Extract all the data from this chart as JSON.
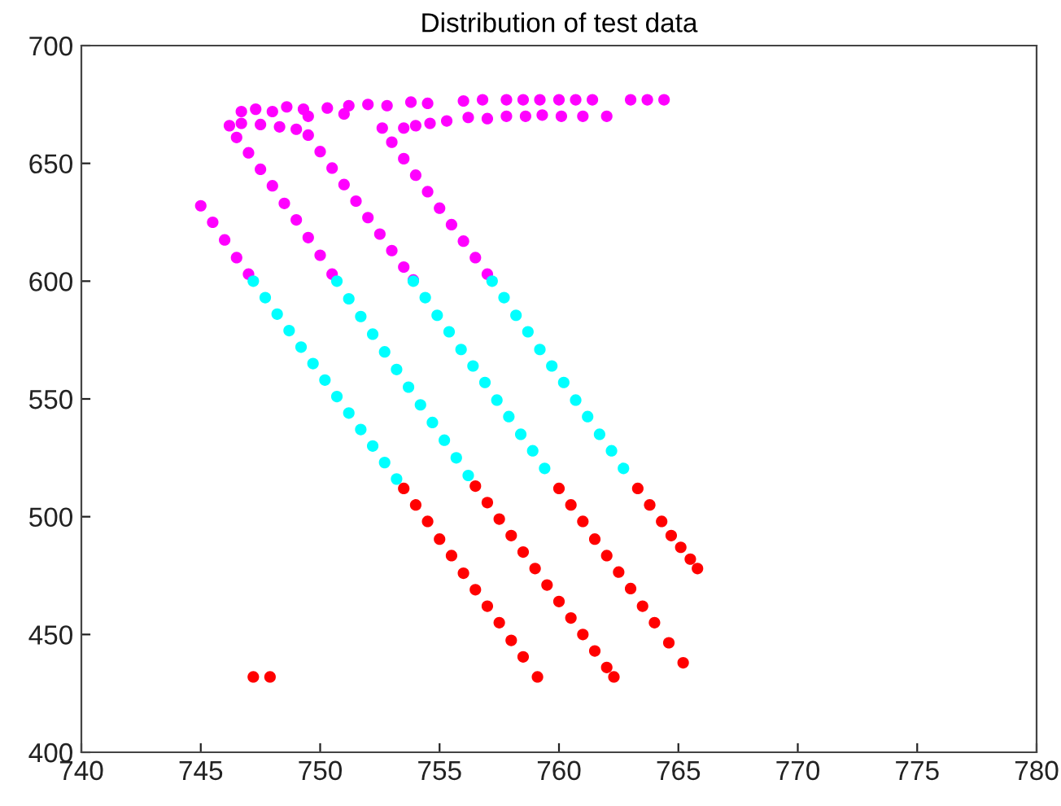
{
  "chart_data": {
    "type": "scatter",
    "title": "Distribution of test data",
    "xlim": [
      740,
      780
    ],
    "xticks": [
      740,
      745,
      750,
      755,
      760,
      765,
      770,
      775,
      780
    ],
    "ylim": [
      400,
      700
    ],
    "yticks": [
      400,
      450,
      500,
      550,
      600,
      650,
      700
    ],
    "grid": false,
    "legend": false,
    "marker": "circle",
    "series": [
      {
        "color": "#ff00ff",
        "x": [
          745.0,
          745.5,
          746.0,
          746.5,
          747.0,
          746.2,
          746.5,
          747.0,
          747.5,
          748.0,
          748.5,
          749.0,
          749.5,
          750.0,
          750.5,
          746.7,
          747.5,
          748.3,
          749.0,
          749.5,
          750.0,
          750.5,
          751.0,
          751.5,
          752.0,
          752.5,
          753.0,
          753.5,
          753.9,
          752.6,
          753.0,
          753.5,
          754.0,
          754.5,
          755.0,
          755.5,
          756.0,
          756.5,
          757.0,
          746.7,
          747.3,
          748.0,
          748.6,
          749.3,
          750.3,
          751.2,
          752.0,
          752.8,
          753.8,
          754.5,
          756.0,
          756.8,
          757.8,
          758.5,
          759.2,
          760.0,
          760.7,
          761.4,
          763.0,
          763.7,
          764.4,
          753.5,
          754.0,
          754.6,
          755.3,
          756.2,
          757.0,
          757.8,
          758.6,
          759.3,
          760.1,
          761.0,
          762.0,
          749.5,
          751.0
        ],
        "values": [
          632,
          625,
          617.5,
          610,
          603,
          666,
          661,
          654.5,
          647.5,
          640.5,
          633,
          626,
          618.5,
          611,
          603,
          667,
          666.5,
          665.5,
          664.5,
          662,
          655,
          648,
          641,
          634,
          627,
          620,
          613,
          606,
          600.5,
          665,
          659,
          652,
          645,
          638,
          631,
          624,
          617,
          610,
          603,
          672,
          673,
          672,
          674,
          673,
          673.5,
          674.5,
          675,
          674.5,
          676,
          675.5,
          676.5,
          677,
          677,
          677,
          677,
          677,
          677,
          677,
          677,
          677,
          677,
          665,
          666,
          667,
          668,
          669.5,
          669,
          670,
          670,
          670.5,
          670,
          670,
          670,
          670,
          671
        ]
      },
      {
        "color": "#00ffff",
        "x": [
          747.2,
          747.7,
          748.2,
          748.7,
          749.2,
          749.7,
          750.2,
          750.7,
          751.2,
          751.7,
          752.2,
          752.7,
          753.2,
          750.7,
          751.2,
          751.7,
          752.2,
          752.7,
          753.2,
          753.7,
          754.2,
          754.7,
          755.2,
          755.7,
          756.2,
          753.9,
          754.4,
          754.9,
          755.4,
          755.9,
          756.4,
          756.9,
          757.4,
          757.9,
          758.4,
          758.9,
          759.4,
          757.2,
          757.7,
          758.2,
          758.7,
          759.2,
          759.7,
          760.2,
          760.7,
          761.2,
          761.7,
          762.2,
          762.7
        ],
        "values": [
          600,
          593,
          586,
          579,
          572,
          565,
          558,
          551,
          544,
          537,
          530,
          523,
          516,
          600,
          592.5,
          585,
          577.5,
          570,
          562.5,
          555,
          547.5,
          540,
          532.5,
          525,
          517.5,
          600,
          593,
          585.5,
          578.5,
          571,
          564,
          557,
          549.5,
          542.5,
          535,
          528,
          520.5,
          600,
          593,
          585.5,
          578.5,
          571,
          564,
          557,
          549.5,
          542.5,
          535,
          528,
          520.5
        ]
      },
      {
        "color": "#ff0000",
        "x": [
          753.5,
          754.0,
          754.5,
          755.0,
          755.5,
          756.0,
          756.5,
          757.0,
          757.5,
          758.0,
          758.5,
          759.1,
          756.5,
          757.0,
          757.5,
          758.0,
          758.5,
          759.0,
          759.5,
          760.0,
          760.5,
          761.0,
          761.5,
          762.0,
          762.3,
          760.0,
          760.5,
          761.0,
          761.5,
          762.0,
          762.5,
          763.0,
          763.5,
          764.0,
          764.6,
          765.2,
          763.3,
          763.8,
          764.3,
          764.7,
          765.1,
          765.5,
          765.8,
          747.2,
          747.9
        ],
        "values": [
          512,
          505,
          498,
          490.5,
          483.5,
          476,
          469,
          462,
          455,
          447.5,
          440.5,
          432,
          513,
          506,
          499,
          492,
          485,
          478,
          471,
          464,
          457,
          450,
          443,
          436,
          432,
          512,
          505,
          498,
          490.5,
          483.5,
          476.5,
          469.5,
          462,
          455,
          446.5,
          438,
          512,
          505,
          498,
          492,
          487,
          482,
          478,
          432,
          432
        ]
      }
    ]
  }
}
